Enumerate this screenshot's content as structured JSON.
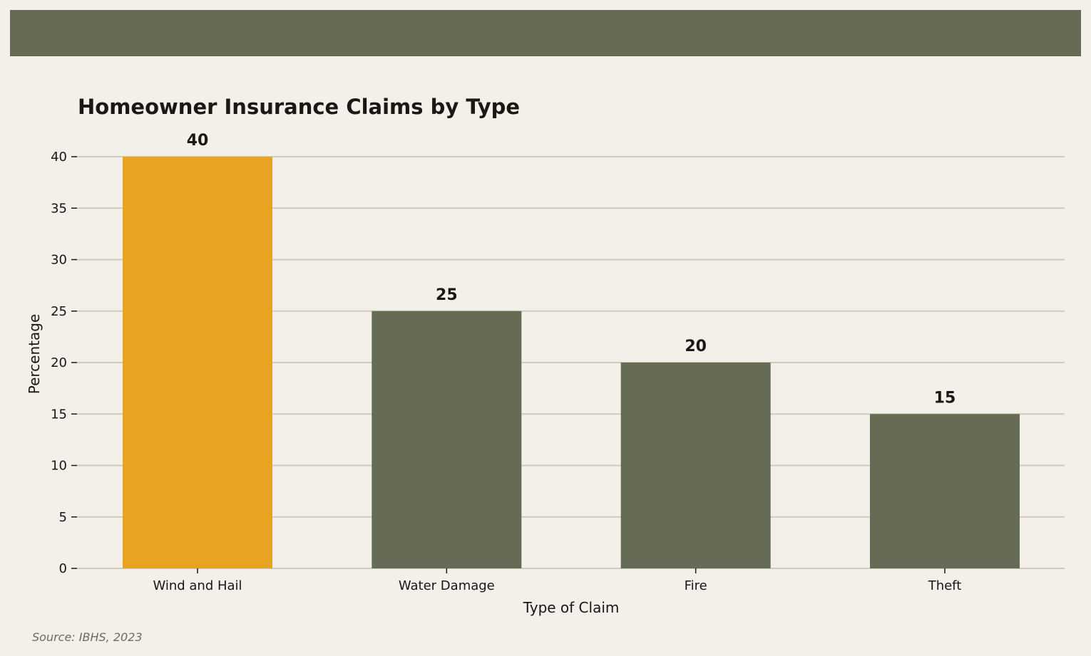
{
  "chart_data": {
    "type": "bar",
    "title": "Homeowner Insurance Claims by Type",
    "xlabel": "Type of Claim",
    "ylabel": "Percentage",
    "categories": [
      "Wind and Hail",
      "Water Damage",
      "Fire",
      "Theft"
    ],
    "values": [
      40,
      25,
      20,
      15
    ],
    "ylim": [
      0,
      40
    ],
    "yticks": [
      0,
      5,
      10,
      15,
      20,
      25,
      30,
      35,
      40
    ],
    "grid": "horizontal",
    "data_labels": true,
    "colors": {
      "highlight": "#e8a323",
      "bar": "#666b55",
      "band": "#666b55",
      "grid": "#cfccbd",
      "background": "#f2f0e8",
      "text": "#1a1714"
    },
    "highlight_index": 0
  },
  "source": "Source: IBHS, 2023"
}
